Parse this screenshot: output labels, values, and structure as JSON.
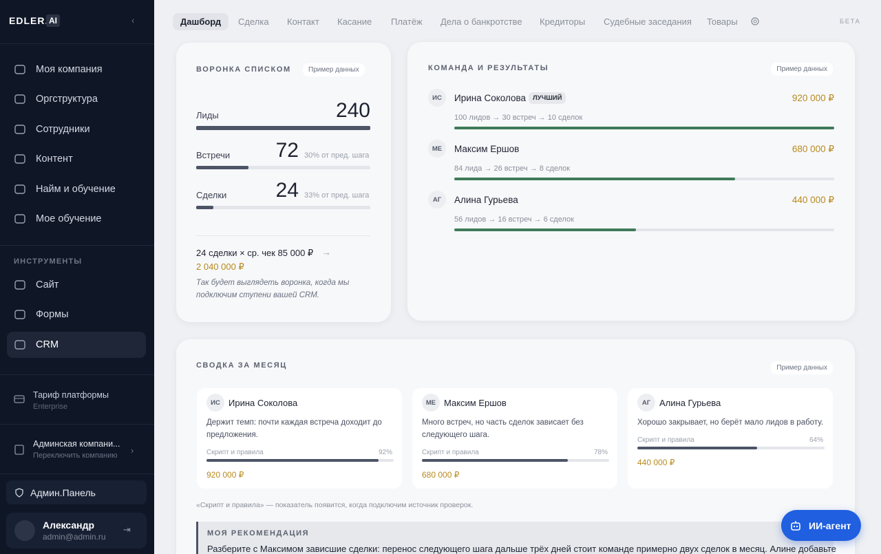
{
  "sidebar": {
    "logo": "EDLER.",
    "logo_badge": "AI",
    "nav": [
      "Моя компания",
      "Оргструктура",
      "Сотрудники",
      "Контент",
      "Найм и обучение",
      "Мое обучение"
    ],
    "tools_heading": "ИНСТРУМЕНТЫ",
    "tools": [
      "Сайт",
      "Формы",
      "CRM"
    ],
    "plan": {
      "title": "Тариф платформы",
      "subtitle": "Enterprise"
    },
    "company": {
      "title": "Админская компани...",
      "subtitle": "Переключить компанию"
    },
    "admin": "Админ.Панель",
    "user": {
      "name": "Александр",
      "email": "admin@admin.ru"
    }
  },
  "tabs": [
    "Дашборд",
    "Сделка",
    "Контакт",
    "Касание",
    "Платёж",
    "Дела о банкротстве",
    "Кредиторы",
    "Судебные заседания",
    "Товары"
  ],
  "beta": "БЕТА",
  "funnel": {
    "title": "ВОРОНКА СПИСКОМ",
    "badge": "Пример данных",
    "steps": [
      {
        "label": "Лиды",
        "value": 240
      },
      {
        "label": "Встречи",
        "value": 72,
        "note": "30% от пред. шага"
      },
      {
        "label": "Сделки",
        "value": 24,
        "note": "33% от пред. шага"
      }
    ],
    "summary": "24 сделки × ср. чек 85 000 ₽",
    "total": "2 040 000 ₽",
    "hint": "Так будет выглядеть воронка, когда мы подключим ступени вашей CRM."
  },
  "team": {
    "title": "КОМАНДА И РЕЗУЛЬТАТЫ",
    "badge": "Пример данных",
    "members": [
      {
        "initials": "ИС",
        "name": "Ирина Соколова",
        "tag": "ЛУЧШИЙ",
        "stats": "100 лидов → 30 встреч → 10 сделок",
        "revenue": 920000,
        "revenue_label": "920 000 ₽"
      },
      {
        "initials": "МЕ",
        "name": "Максим Ершов",
        "stats": "84 лида → 26 встреч → 8 сделок",
        "revenue": 680000,
        "revenue_label": "680 000 ₽"
      },
      {
        "initials": "АГ",
        "name": "Алина Гурьева",
        "stats": "56 лидов → 16 встреч → 6 сделок",
        "revenue": 440000,
        "revenue_label": "440 000 ₽"
      }
    ]
  },
  "summary": {
    "title": "СВОДКА ЗА МЕСЯЦ",
    "badge": "Пример данных",
    "cards": [
      {
        "initials": "ИС",
        "name": "Ирина Соколова",
        "text": "Держит темп: почти каждая встреча доходит до предложения.",
        "metric": "Скрипт и правила",
        "score": {
          "value": 92,
          "label": "92%"
        },
        "revenue": "920 000 ₽"
      },
      {
        "initials": "МЕ",
        "name": "Максим Ершов",
        "text": "Много встреч, но часть сделок зависает без следующего шага.",
        "metric": "Скрипт и правила",
        "score": {
          "value": 78,
          "label": "78%"
        },
        "revenue": "680 000 ₽"
      },
      {
        "initials": "АГ",
        "name": "Алина Гурьева",
        "text": "Хорошо закрывает, но берёт мало лидов в работу.",
        "metric": "Скрипт и правила",
        "score": {
          "value": 64,
          "label": "64%"
        },
        "revenue": "440 000 ₽"
      }
    ],
    "footnote": "«Скрипт и правила» — показатель появится, когда подключим источник проверок.",
    "recommendation_title": "МОЯ РЕКОМЕНДАЦИЯ",
    "recommendation": "Разберите с Максимом зависшие сделки: перенос следующего шага дальше трёх дней стоит команде примерно двух сделок в месяц. Алине добавьте"
  },
  "ai_button": "ИИ-агент"
}
